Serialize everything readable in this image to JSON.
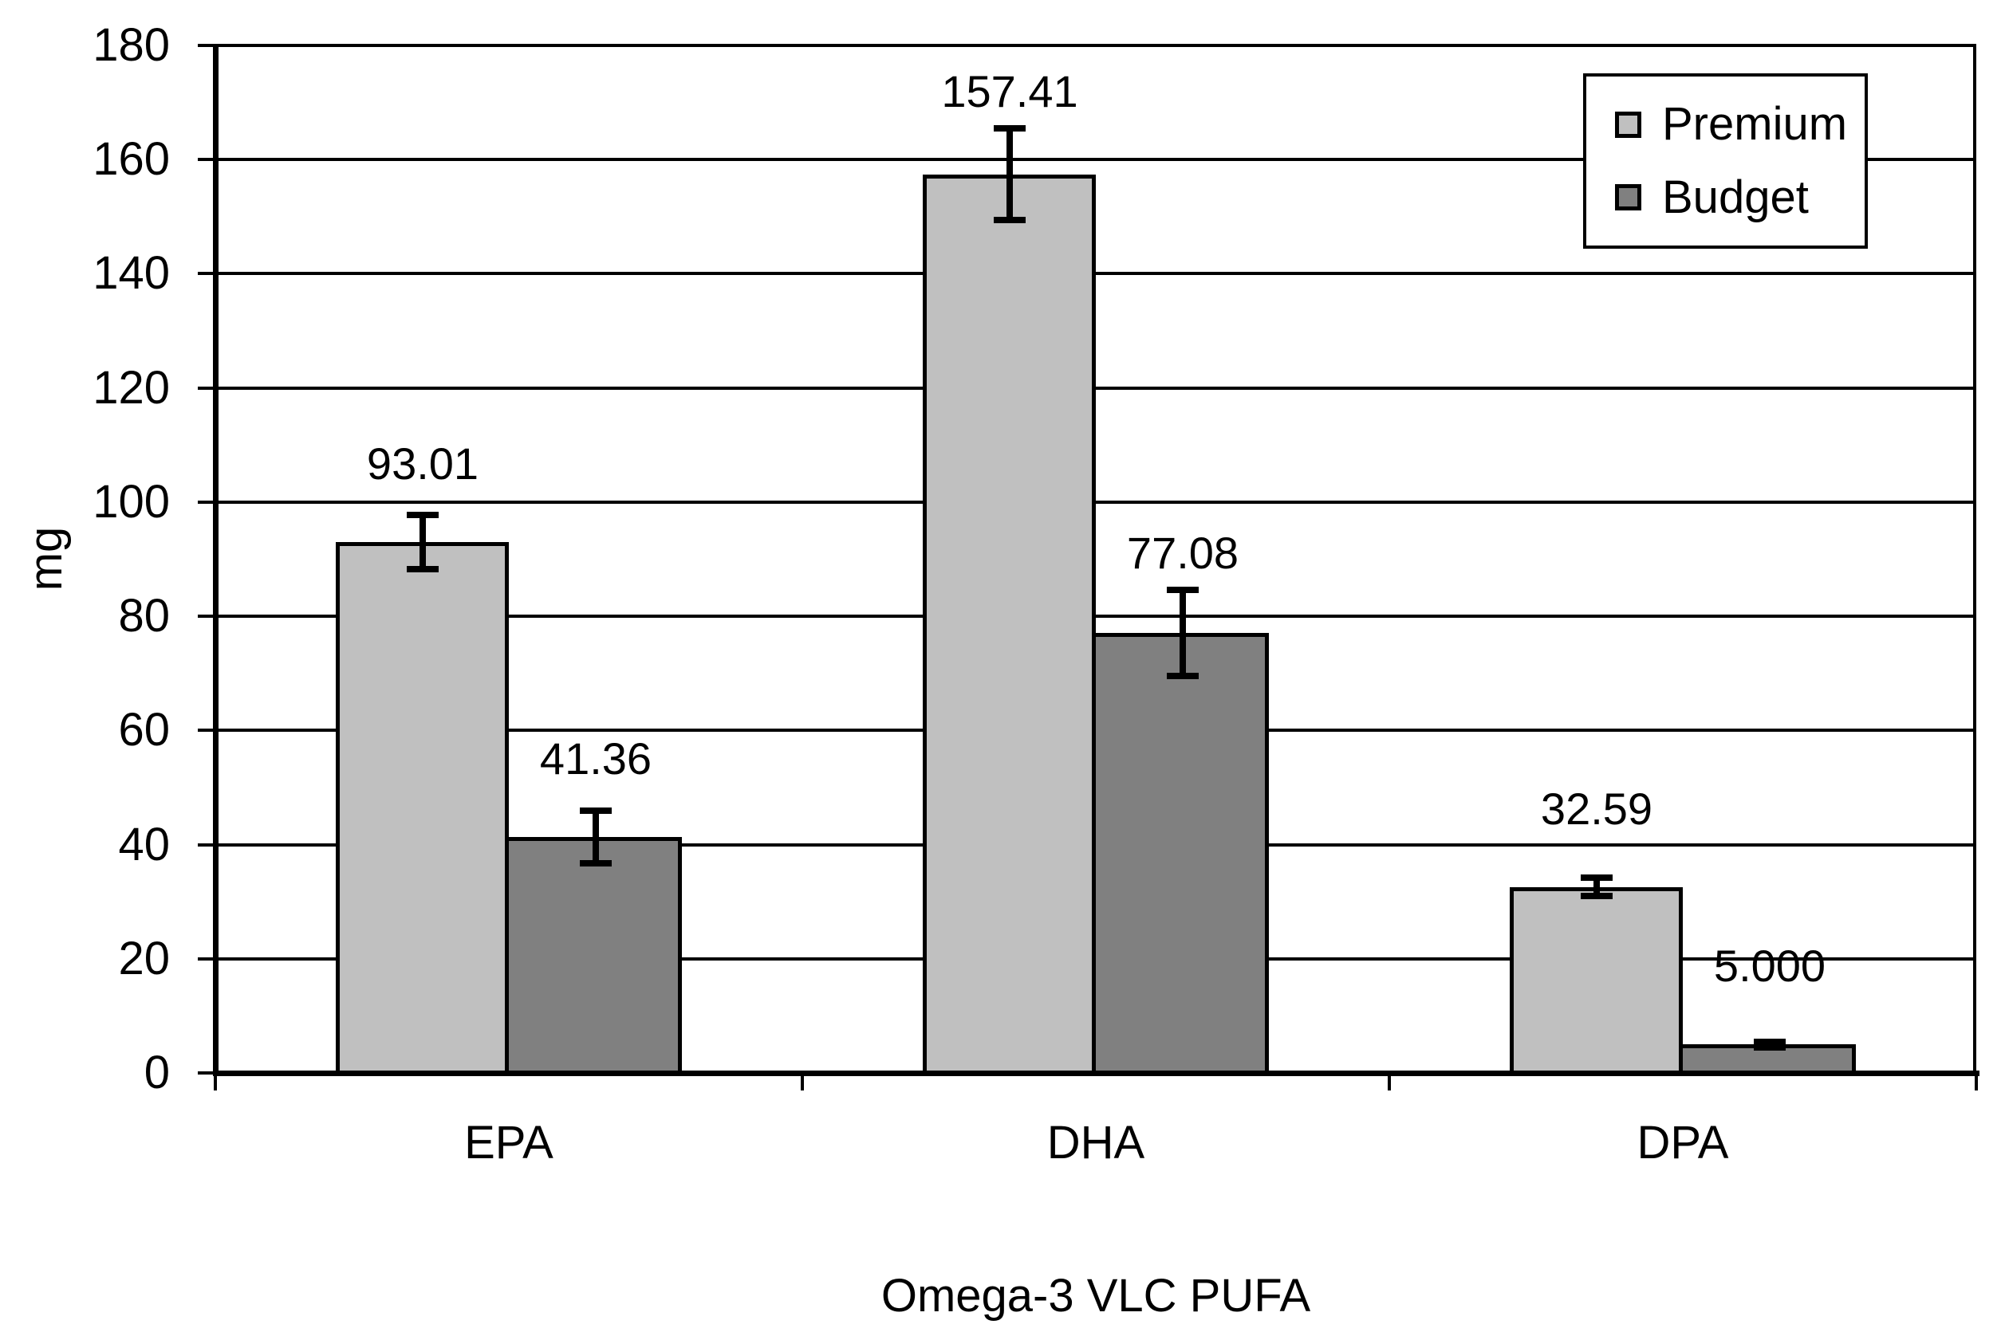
{
  "chart_data": {
    "type": "bar",
    "title": "",
    "xlabel": "Omega-3 VLC PUFA",
    "ylabel": "mg",
    "ylim": [
      0,
      180
    ],
    "ytick_step": 20,
    "yticks": [
      0,
      20,
      40,
      60,
      80,
      100,
      120,
      140,
      160,
      180
    ],
    "grid": true,
    "legend_position": "top-right-inside",
    "categories": [
      "EPA",
      "DHA",
      "DPA"
    ],
    "series": [
      {
        "name": "Premium",
        "color": "#c0c0c0",
        "values": [
          93.01,
          157.41,
          32.59
        ],
        "value_labels": [
          "93.01",
          "157.41",
          "32.59"
        ],
        "errors": [
          4.7,
          8.0,
          1.6
        ]
      },
      {
        "name": "Budget",
        "color": "#808080",
        "values": [
          41.36,
          77.08,
          5.0
        ],
        "value_labels": [
          "41.36",
          "77.08",
          "5.000"
        ],
        "errors": [
          4.6,
          7.6,
          0.5
        ]
      }
    ],
    "colors": {
      "axis": "#000000",
      "grid": "#000000",
      "text": "#000000",
      "error_bar": "#000000",
      "background": "#ffffff"
    }
  }
}
